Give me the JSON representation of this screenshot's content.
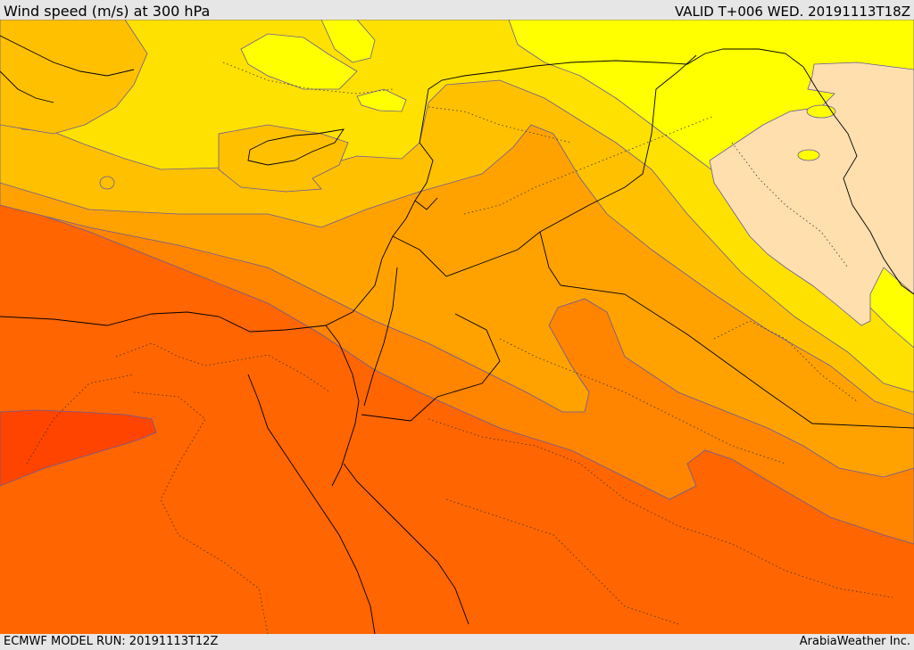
{
  "header": {
    "title": "Wind speed (m/s) at 300 hPa",
    "valid": "VALID T+006 WED. 20191113T18Z"
  },
  "footer": {
    "model_run": "ECMWF MODEL RUN: 20191113T12Z",
    "credit": "ArabiaWeather Inc."
  },
  "colors": {
    "background": "#e6e6e6",
    "wheat_band": "#ffdfae",
    "yellow": "#ffff00",
    "light_gold": "#ffe100",
    "gold": "#ffc000",
    "amber": "#ffa200",
    "dark_orange": "#ff8400",
    "orange_red": "#ff6500",
    "red_orange": "#ff4400",
    "contour": "#6a5a9a",
    "borders": "#000000"
  }
}
